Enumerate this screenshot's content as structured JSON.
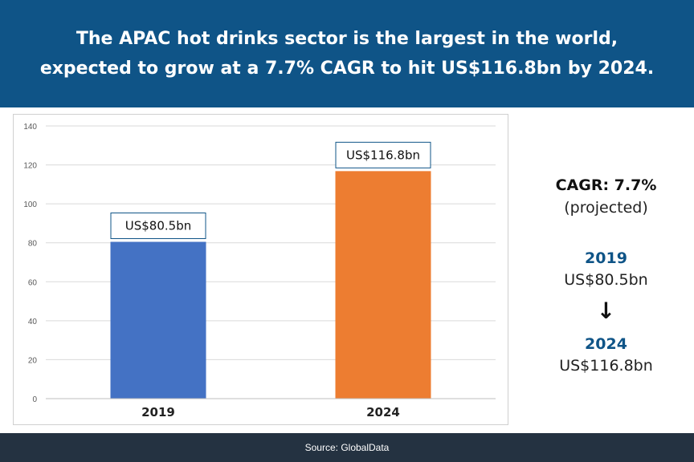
{
  "header": {
    "line1": "The APAC hot drinks sector is the largest in the world,",
    "line2": "expected to grow at a 7.7% CAGR to hit US$116.8bn by 2024."
  },
  "chart_data": {
    "type": "bar",
    "categories": [
      "2019",
      "2024"
    ],
    "values": [
      80.5,
      116.8
    ],
    "data_labels": [
      "US$80.5bn",
      "US$116.8bn"
    ],
    "bar_colors": [
      "#4472c4",
      "#ed7d31"
    ],
    "ylim": [
      0,
      140
    ],
    "yticks": [
      0,
      20,
      40,
      60,
      80,
      100,
      120,
      140
    ],
    "grid": true,
    "title": "",
    "xlabel": "",
    "ylabel": ""
  },
  "side": {
    "cagr": "CAGR: 7.7%",
    "projected": "(projected)",
    "year1": "2019",
    "value1": "US$80.5bn",
    "arrow": "🡣",
    "year2": "2024",
    "value2": "US$116.8bn"
  },
  "footer": {
    "source": "Source: GlobalData"
  }
}
